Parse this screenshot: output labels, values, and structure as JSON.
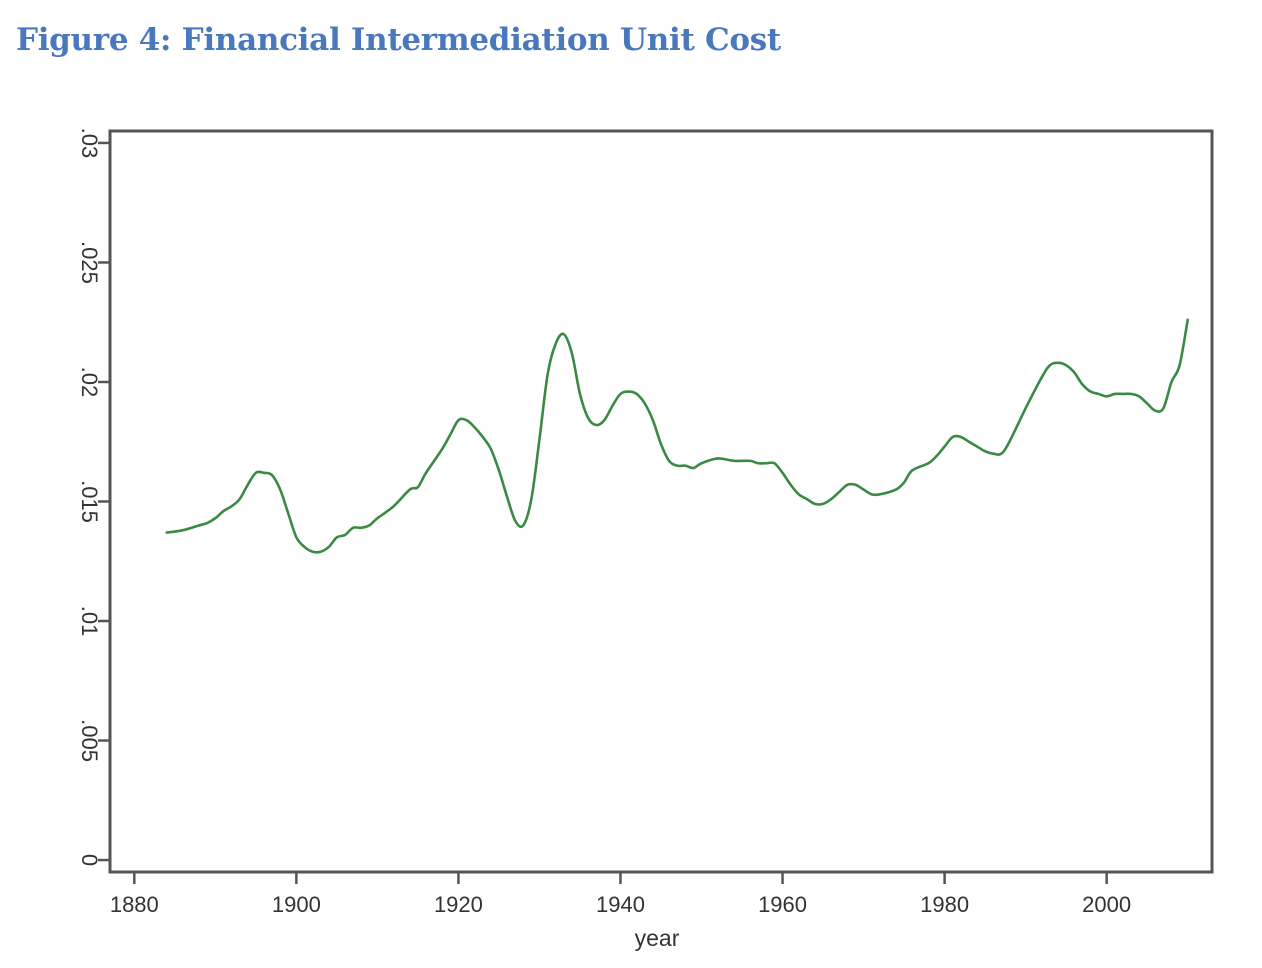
{
  "figure_title": "Figure 4: Financial Intermediation Unit Cost",
  "colors": {
    "title": "#4a78bd",
    "series_line": "#3a8a44",
    "frame": "#555555",
    "text": "#333333"
  },
  "chart_data": {
    "type": "line",
    "title": "Figure 4: Financial Intermediation Unit Cost",
    "xlabel": "year",
    "ylabel": "",
    "xlim": [
      1877,
      2013
    ],
    "ylim": [
      -0.0005,
      0.0305
    ],
    "x_ticks": [
      1880,
      1900,
      1920,
      1940,
      1960,
      1980,
      2000
    ],
    "x_tick_labels": [
      "1880",
      "1900",
      "1920",
      "1940",
      "1960",
      "1980",
      "2000"
    ],
    "y_ticks": [
      0,
      0.005,
      0.01,
      0.015,
      0.02,
      0.025,
      0.03
    ],
    "y_tick_labels": [
      "0",
      ".005",
      ".01",
      ".015",
      ".02",
      ".025",
      ".03"
    ],
    "grid": false,
    "series": [
      {
        "name": "unit cost",
        "x": [
          1884,
          1886,
          1888,
          1889,
          1890,
          1891,
          1892,
          1893,
          1894,
          1895,
          1896,
          1897,
          1898,
          1899,
          1900,
          1901,
          1902,
          1903,
          1904,
          1905,
          1906,
          1907,
          1908,
          1909,
          1910,
          1912,
          1914,
          1915,
          1916,
          1918,
          1919,
          1920,
          1921,
          1922,
          1923,
          1924,
          1925,
          1926,
          1927,
          1928,
          1929,
          1930,
          1931,
          1932,
          1933,
          1934,
          1935,
          1936,
          1937,
          1938,
          1939,
          1940,
          1941,
          1942,
          1943,
          1944,
          1945,
          1946,
          1947,
          1948,
          1949,
          1950,
          1952,
          1954,
          1956,
          1957,
          1958,
          1959,
          1960,
          1961,
          1962,
          1963,
          1964,
          1965,
          1966,
          1967,
          1968,
          1969,
          1970,
          1971,
          1972,
          1974,
          1975,
          1976,
          1978,
          1979,
          1980,
          1981,
          1982,
          1983,
          1984,
          1985,
          1986,
          1987,
          1988,
          1990,
          1992,
          1993,
          1994,
          1995,
          1996,
          1997,
          1998,
          1999,
          2000,
          2001,
          2002,
          2003,
          2004,
          2005,
          2006,
          2007,
          2008,
          2009,
          2010
        ],
        "y": [
          0.0137,
          0.0138,
          0.014,
          0.0141,
          0.0143,
          0.0146,
          0.0148,
          0.0151,
          0.0157,
          0.0162,
          0.0162,
          0.0161,
          0.0155,
          0.0145,
          0.0135,
          0.0131,
          0.0129,
          0.0129,
          0.0131,
          0.0135,
          0.0136,
          0.0139,
          0.0139,
          0.014,
          0.0143,
          0.0148,
          0.0155,
          0.0156,
          0.0162,
          0.0172,
          0.0178,
          0.0184,
          0.0184,
          0.0181,
          0.0177,
          0.0172,
          0.0163,
          0.0152,
          0.0142,
          0.014,
          0.0151,
          0.0176,
          0.0203,
          0.0216,
          0.022,
          0.0212,
          0.0195,
          0.0185,
          0.0182,
          0.0184,
          0.019,
          0.0195,
          0.0196,
          0.0195,
          0.0191,
          0.0184,
          0.0174,
          0.0167,
          0.0165,
          0.0165,
          0.0164,
          0.0166,
          0.0168,
          0.0167,
          0.0167,
          0.0166,
          0.0166,
          0.0166,
          0.0162,
          0.0157,
          0.0153,
          0.0151,
          0.0149,
          0.0149,
          0.0151,
          0.0154,
          0.0157,
          0.0157,
          0.0155,
          0.0153,
          0.0153,
          0.0155,
          0.0158,
          0.0163,
          0.0166,
          0.0169,
          0.0173,
          0.0177,
          0.0177,
          0.0175,
          0.0173,
          0.0171,
          0.017,
          0.017,
          0.0175,
          0.0189,
          0.0202,
          0.0207,
          0.0208,
          0.0207,
          0.0204,
          0.0199,
          0.0196,
          0.0195,
          0.0194,
          0.0195,
          0.0195,
          0.0195,
          0.0194,
          0.0191,
          0.0188,
          0.0189,
          0.02,
          0.0207,
          0.0226
        ]
      }
    ]
  }
}
